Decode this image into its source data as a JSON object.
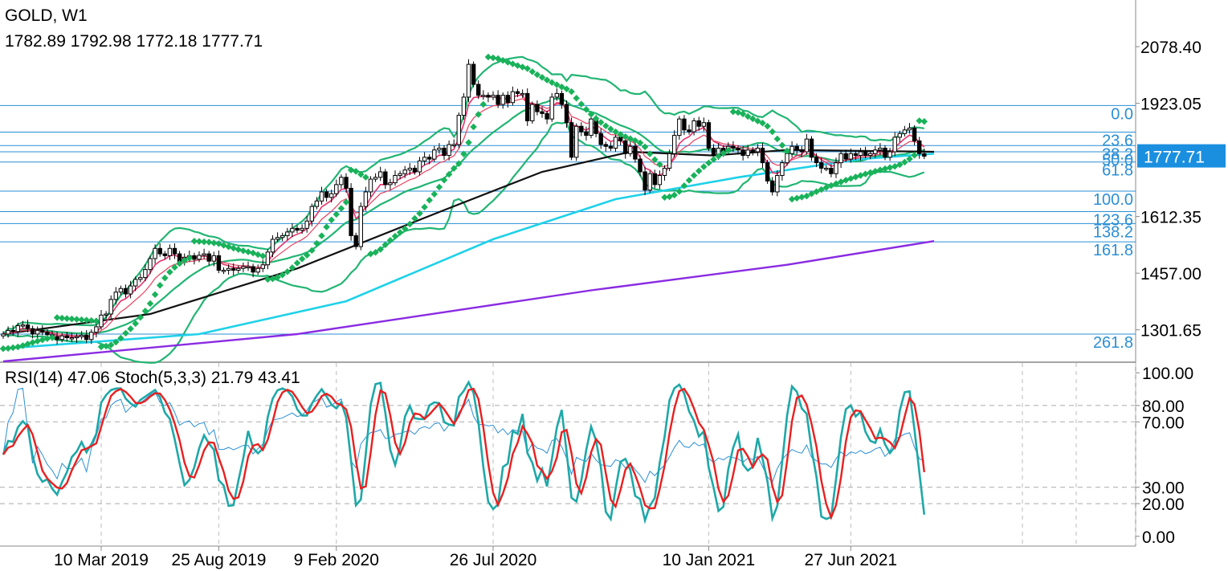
{
  "header": {
    "symbol": "GOLD, W1",
    "ohlc": "1782.89 1792.98 1772.18 1777.71"
  },
  "sub_header": {
    "indicators": "RSI(14) 47.06 Stoch(5,3,3) 21.79 43.41"
  },
  "colors": {
    "candle_up": "#ffffff",
    "candle_down": "#000000",
    "bollinger": "#22b573",
    "parabolic_sar": "#19b25a",
    "ema_fast": "#e8336d",
    "ema_slow": "#e84060",
    "sma_50": "#111111",
    "sma_100": "#1fd1e8",
    "sma_200": "#8a2be2",
    "fib_lines": "#2a8fd6",
    "rsi": "#2a8fd6",
    "stoch_k": "#1fa8a8",
    "stoch_d": "#e82020",
    "price_badge_bg": "#1a8fe0",
    "price_badge_text": "#ffffff"
  },
  "chart_data": [
    {
      "type": "candlestick",
      "title": "GOLD, W1",
      "ylim": [
        1215,
        2180
      ],
      "y_ticks": [
        "2078.40",
        "1923.05",
        "1612.35",
        "1457.00",
        "1301.65"
      ],
      "y_tick_values": [
        2078.4,
        1923.05,
        1612.35,
        1457.0,
        1301.65
      ],
      "last_price_label": "1777.71",
      "last_price": 1777.71,
      "x_tick_labels": [
        "10 Mar 2019",
        "25 Aug 2019",
        "9 Feb 2020",
        "26 Jul 2020",
        "10 Jan 2021",
        "27 Jun 2021"
      ],
      "fibonacci": {
        "labels": [
          "0.0",
          "23.6",
          "38.2",
          "50.0",
          "61.8",
          "100.0",
          "123.6",
          "138.2",
          "161.8",
          "261.8"
        ],
        "visible_labels": [
          "0.0",
          "61.8",
          "100.0",
          "138.2",
          "161.8",
          "261.8"
        ],
        "levels": [
          1917,
          1844,
          1807,
          1790,
          1762,
          1682,
          1626,
          1593,
          1543,
          1290
        ]
      },
      "close_series": [
        1290,
        1300,
        1297,
        1313,
        1315,
        1305,
        1290,
        1300,
        1295,
        1288,
        1283,
        1275,
        1285,
        1280,
        1280,
        1283,
        1287,
        1275,
        1295,
        1310,
        1342,
        1345,
        1385,
        1405,
        1415,
        1400,
        1422,
        1440,
        1445,
        1467,
        1497,
        1525,
        1510,
        1505,
        1525,
        1510,
        1488,
        1500,
        1505,
        1495,
        1506,
        1510,
        1490,
        1505,
        1465,
        1465,
        1470,
        1465,
        1470,
        1475,
        1475,
        1460,
        1470,
        1480,
        1515,
        1550,
        1555,
        1560,
        1570,
        1580,
        1575,
        1580,
        1600,
        1640,
        1655,
        1680,
        1665,
        1675,
        1700,
        1720,
        1690,
        1560,
        1530,
        1640,
        1680,
        1715,
        1720,
        1735,
        1700,
        1705,
        1725,
        1730,
        1740,
        1745,
        1735,
        1765,
        1775,
        1770,
        1795,
        1800,
        1780,
        1810,
        1810,
        1890,
        1940,
        2030,
        1975,
        1945,
        1945,
        1940,
        1945,
        1920,
        1945,
        1925,
        1955,
        1950,
        1950,
        1875,
        1920,
        1900,
        1895,
        1880,
        1940,
        1950,
        1920,
        1870,
        1775,
        1860,
        1845,
        1835,
        1880,
        1840,
        1810,
        1805,
        1800,
        1830,
        1820,
        1785,
        1805,
        1770,
        1735,
        1685,
        1730,
        1700,
        1725,
        1745,
        1785,
        1835,
        1880,
        1850,
        1845,
        1875,
        1860,
        1870,
        1800,
        1780,
        1800,
        1790,
        1805,
        1800,
        1795,
        1780,
        1795,
        1790,
        1800,
        1760,
        1710,
        1680,
        1725,
        1760,
        1785,
        1805,
        1795,
        1790,
        1825,
        1775,
        1760,
        1745,
        1745,
        1730,
        1760,
        1785,
        1770,
        1785,
        1780,
        1790,
        1780,
        1785,
        1795,
        1800,
        1775,
        1790,
        1830,
        1840,
        1850,
        1855,
        1820,
        1785,
        1778
      ],
      "series": [
        {
          "name": "SMA 50",
          "points": [
            [
              0,
              1290
            ],
            [
              30,
              1345
            ],
            [
              60,
              1470
            ],
            [
              90,
              1630
            ],
            [
              110,
              1735
            ],
            [
              128,
              1790
            ],
            [
              145,
              1780
            ],
            [
              160,
              1795
            ],
            [
              190,
              1790
            ]
          ]
        },
        {
          "name": "SMA 100",
          "points": [
            [
              0,
              1250
            ],
            [
              40,
              1290
            ],
            [
              70,
              1380
            ],
            [
              100,
              1550
            ],
            [
              125,
              1660
            ],
            [
              150,
              1720
            ],
            [
              175,
              1770
            ],
            [
              190,
              1785
            ]
          ]
        },
        {
          "name": "SMA 200",
          "points": [
            [
              0,
              1215
            ],
            [
              60,
              1290
            ],
            [
              120,
              1410
            ],
            [
              160,
              1480
            ],
            [
              190,
              1545
            ]
          ]
        }
      ]
    },
    {
      "type": "line",
      "title": "RSI(14) 47.06 Stoch(5,3,3) 21.79 43.41",
      "ylim": [
        -6,
        106
      ],
      "y_ticks": [
        "100.00",
        "80.00",
        "70.00",
        "30.00",
        "20.00",
        "0.00"
      ],
      "y_tick_values": [
        100,
        80,
        70,
        30,
        20,
        0
      ],
      "series": [
        {
          "name": "RSI(14)",
          "last": 47.06
        },
        {
          "name": "Stoch %K",
          "last": 21.79
        },
        {
          "name": "Stoch %D",
          "last": 43.41
        }
      ]
    }
  ]
}
